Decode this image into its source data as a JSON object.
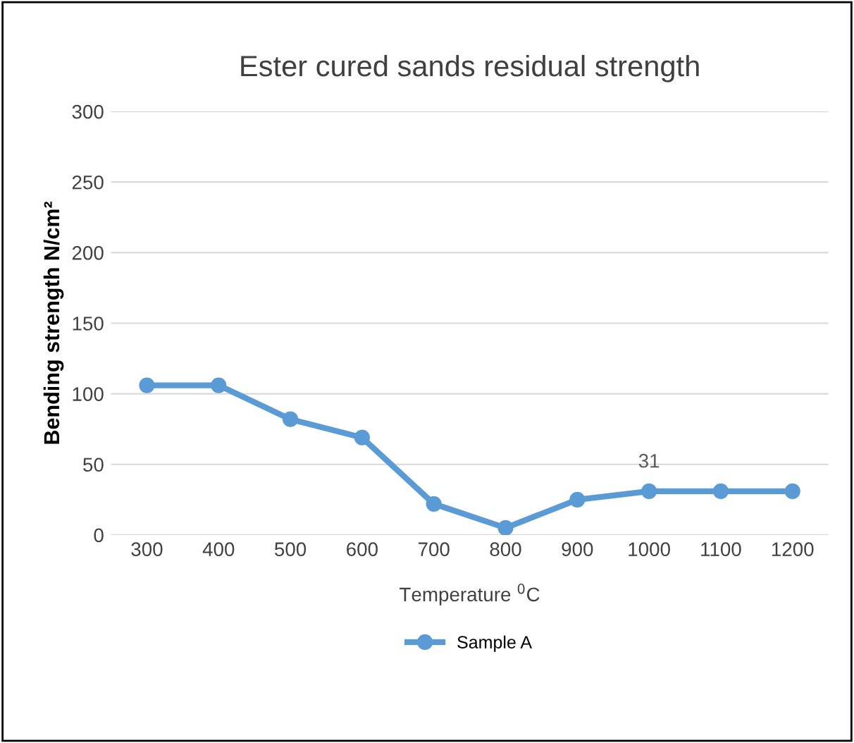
{
  "chart_data": {
    "type": "line",
    "title": "Ester cured sands residual strength",
    "xlabel": "Temperature $^{0}$C",
    "ylabel": "Bending strength N/cm²",
    "categories": [
      "300",
      "400",
      "500",
      "600",
      "700",
      "800",
      "900",
      "1000",
      "1100",
      "1200"
    ],
    "series": [
      {
        "name": "Sample A",
        "color": "#5b9bd5",
        "values": [
          106,
          106,
          82,
          69,
          22,
          5,
          25,
          31,
          31,
          31
        ],
        "value_labels": [
          null,
          null,
          null,
          null,
          null,
          null,
          null,
          "31",
          null,
          null
        ]
      }
    ],
    "ylim": [
      0,
      300
    ],
    "yticks": [
      0,
      50,
      100,
      150,
      200,
      250,
      300
    ],
    "grid": "y",
    "legend": "bottom",
    "marker": "circle",
    "line_style": "solid"
  }
}
